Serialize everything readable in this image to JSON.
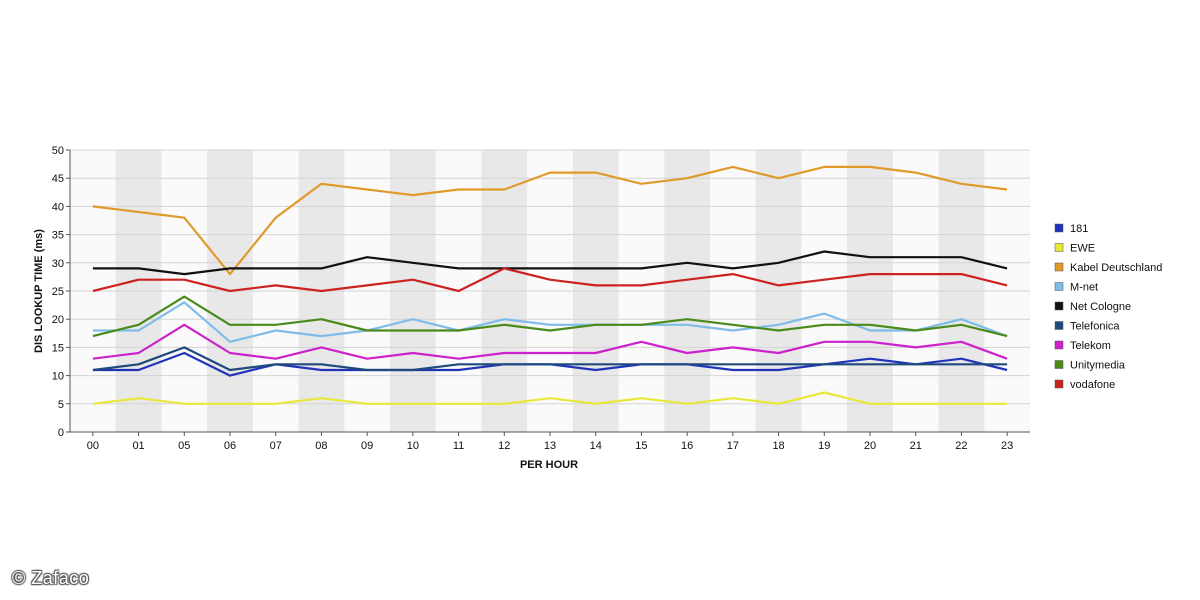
{
  "copyright": "© Zafaco",
  "chart_data": {
    "type": "line",
    "xlabel": "PER HOUR",
    "ylabel": "DIS LOOKUP TIME (ms)",
    "ylim": [
      0,
      50
    ],
    "yticks": [
      0,
      5,
      10,
      15,
      20,
      25,
      30,
      35,
      40,
      45,
      50
    ],
    "grid": "horizontal",
    "background": "alternating vertical bands",
    "legend_position": "right",
    "categories": [
      "00",
      "01",
      "05",
      "06",
      "07",
      "08",
      "09",
      "10",
      "11",
      "12",
      "13",
      "14",
      "15",
      "16",
      "17",
      "18",
      "19",
      "20",
      "21",
      "22",
      "23"
    ],
    "series": [
      {
        "name": "181",
        "color": "#2233bb",
        "values": [
          11,
          11,
          14,
          10,
          12,
          11,
          11,
          11,
          11,
          12,
          12,
          11,
          12,
          12,
          11,
          11,
          12,
          13,
          12,
          13,
          11
        ]
      },
      {
        "name": "EWE",
        "color": "#e8e83a",
        "values": [
          5,
          6,
          5,
          5,
          5,
          6,
          5,
          5,
          5,
          5,
          6,
          5,
          6,
          5,
          6,
          5,
          7,
          5,
          5,
          5,
          5
        ]
      },
      {
        "name": "Kabel Deutschland",
        "color": "#e09a2a",
        "values": [
          40,
          39,
          38,
          28,
          38,
          44,
          43,
          42,
          43,
          43,
          46,
          46,
          44,
          45,
          47,
          45,
          47,
          47,
          46,
          44,
          43
        ]
      },
      {
        "name": "M-net",
        "color": "#7fbde8",
        "values": [
          18,
          18,
          23,
          16,
          18,
          17,
          18,
          20,
          18,
          20,
          19,
          19,
          19,
          19,
          18,
          19,
          21,
          18,
          18,
          20,
          17
        ]
      },
      {
        "name": "Net Cologne",
        "color": "#111111",
        "values": [
          29,
          29,
          28,
          29,
          29,
          29,
          31,
          30,
          29,
          29,
          29,
          29,
          29,
          30,
          29,
          30,
          32,
          31,
          31,
          31,
          29
        ]
      },
      {
        "name": "Telefonica",
        "color": "#1f4a7a",
        "values": [
          11,
          12,
          15,
          11,
          12,
          12,
          11,
          11,
          12,
          12,
          12,
          12,
          12,
          12,
          12,
          12,
          12,
          12,
          12,
          12,
          12
        ]
      },
      {
        "name": "Telekom",
        "color": "#cc22cc",
        "values": [
          13,
          14,
          19,
          14,
          13,
          15,
          13,
          14,
          13,
          14,
          14,
          14,
          16,
          14,
          15,
          14,
          16,
          16,
          15,
          16,
          13
        ]
      },
      {
        "name": "Unitymedia",
        "color": "#4a8a1a",
        "values": [
          17,
          19,
          24,
          19,
          19,
          20,
          18,
          18,
          18,
          19,
          18,
          19,
          19,
          20,
          19,
          18,
          19,
          19,
          18,
          19,
          17
        ]
      },
      {
        "name": "vodafone",
        "color": "#cc2222",
        "values": [
          25,
          27,
          27,
          25,
          26,
          25,
          26,
          27,
          25,
          29,
          27,
          26,
          26,
          27,
          28,
          26,
          27,
          28,
          28,
          28,
          26
        ]
      }
    ]
  }
}
